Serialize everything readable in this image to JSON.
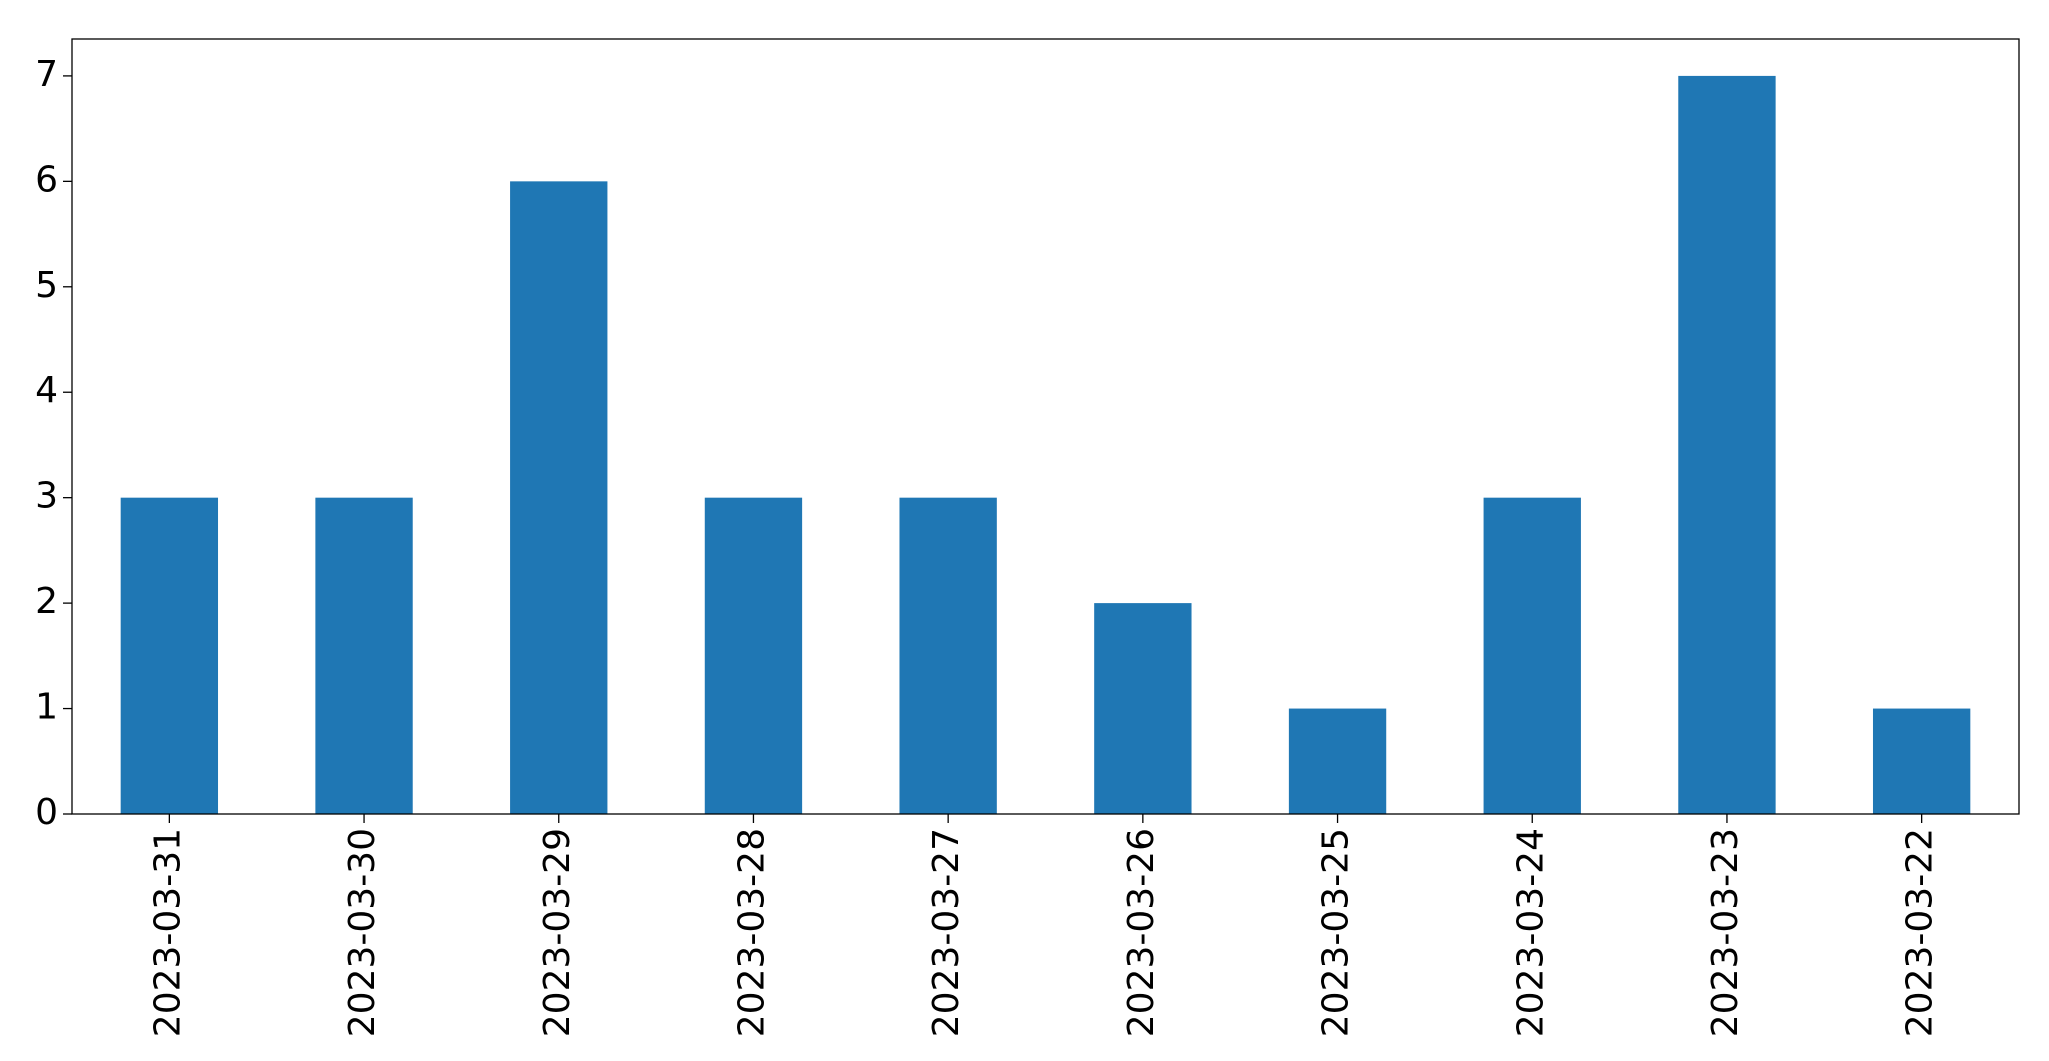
{
  "chart_data": {
    "type": "bar",
    "categories": [
      "2023-03-31",
      "2023-03-30",
      "2023-03-29",
      "2023-03-28",
      "2023-03-27",
      "2023-03-26",
      "2023-03-25",
      "2023-03-24",
      "2023-03-23",
      "2023-03-22"
    ],
    "values": [
      3,
      3,
      6,
      3,
      3,
      2,
      1,
      3,
      7,
      1
    ],
    "color": "#1f77b4",
    "ylim": [
      0,
      7.35
    ],
    "yticks": [
      0,
      1,
      2,
      3,
      4,
      5,
      6,
      7
    ],
    "grid": false
  }
}
